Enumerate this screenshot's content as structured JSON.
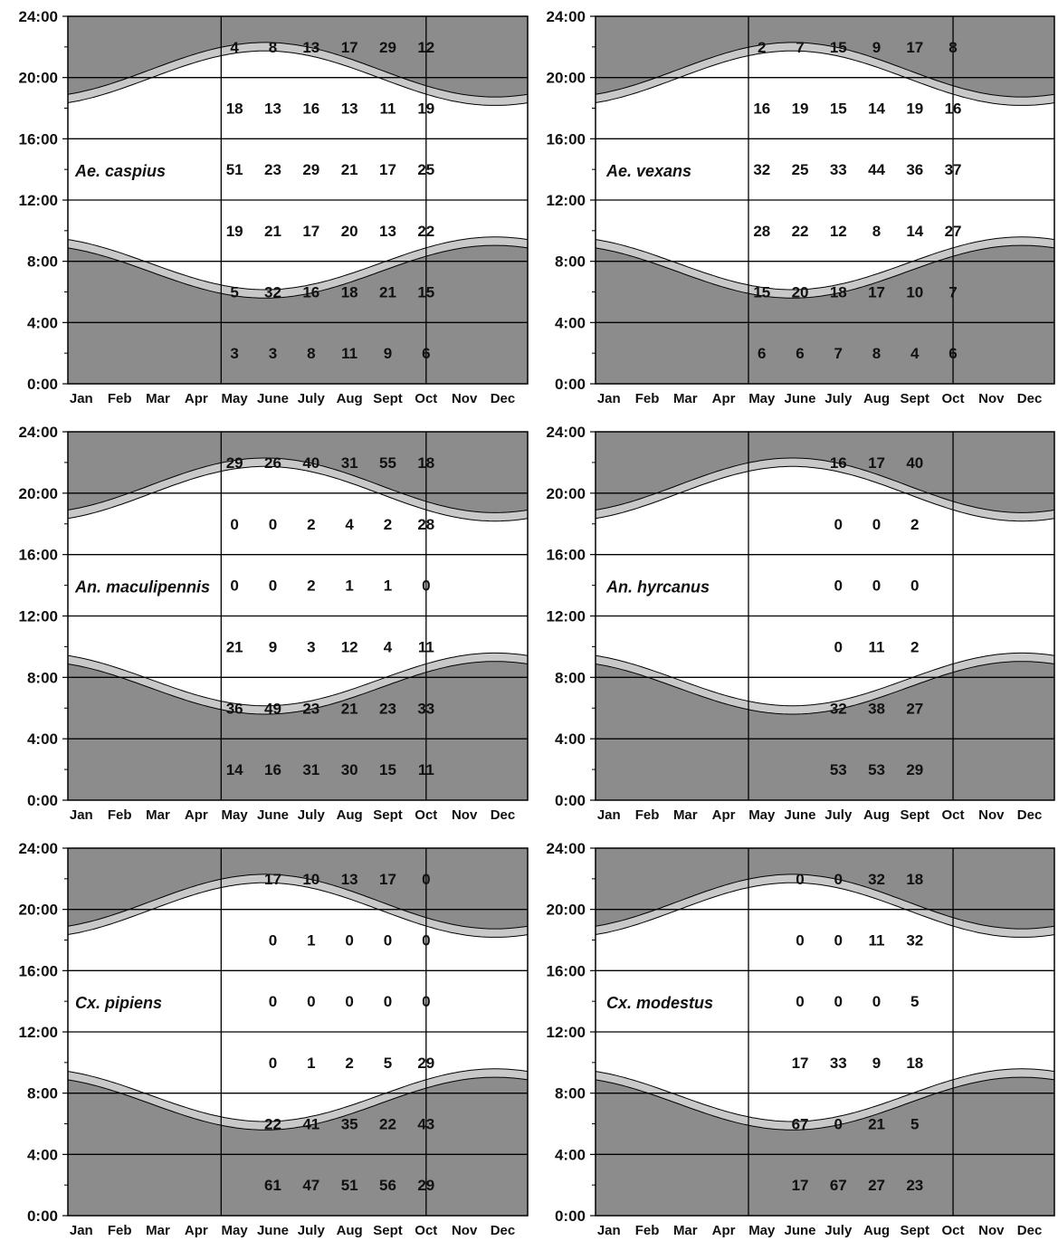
{
  "figure": {
    "months": [
      "Jan",
      "Feb",
      "Mar",
      "Apr",
      "May",
      "June",
      "July",
      "Aug",
      "Sept",
      "Oct",
      "Nov",
      "Dec"
    ],
    "y_ticks": [
      "24:00",
      "20:00",
      "16:00",
      "12:00",
      "8:00",
      "4:00",
      "0:00"
    ],
    "colors": {
      "night": "#8c8c8c",
      "twilight": "#c8c8c8",
      "day": "#ffffff",
      "lines": "#000000"
    }
  },
  "chart_data": [
    {
      "type": "table",
      "species": "Ae. caspius",
      "columns": [
        "May",
        "June",
        "July",
        "Aug",
        "Sept",
        "Oct"
      ],
      "season_start_month": "May",
      "season_end_month": "Oct",
      "time_bins": [
        "20:00-24:00",
        "16:00-20:00",
        "12:00-16:00",
        "8:00-12:00",
        "4:00-8:00",
        "0:00-4:00"
      ],
      "rows": [
        [
          "4",
          "8",
          "13",
          "17",
          "29",
          "12"
        ],
        [
          "18",
          "13",
          "16",
          "13",
          "11",
          "19"
        ],
        [
          "51",
          "23",
          "29",
          "21",
          "17",
          "25"
        ],
        [
          "19",
          "21",
          "17",
          "20",
          "13",
          "22"
        ],
        [
          "5",
          "32",
          "16",
          "18",
          "21",
          "15"
        ],
        [
          "3",
          "3",
          "8",
          "11",
          "9",
          "6"
        ]
      ]
    },
    {
      "type": "table",
      "species": "Ae. vexans",
      "columns": [
        "May",
        "June",
        "July",
        "Aug",
        "Sept",
        "Oct"
      ],
      "season_start_month": "May",
      "season_end_month": "Oct",
      "time_bins": [
        "20:00-24:00",
        "16:00-20:00",
        "12:00-16:00",
        "8:00-12:00",
        "4:00-8:00",
        "0:00-4:00"
      ],
      "rows": [
        [
          "2",
          "7",
          "15",
          "9",
          "17",
          "8"
        ],
        [
          "16",
          "19",
          "15",
          "14",
          "19",
          "16"
        ],
        [
          "32",
          "25",
          "33",
          "44",
          "36",
          "37"
        ],
        [
          "28",
          "22",
          "12",
          "8",
          "14",
          "27"
        ],
        [
          "15",
          "20",
          "18",
          "17",
          "10",
          "7"
        ],
        [
          "6",
          "6",
          "7",
          "8",
          "4",
          "6"
        ]
      ]
    },
    {
      "type": "table",
      "species": "An. maculipennis",
      "columns": [
        "May",
        "June",
        "July",
        "Aug",
        "Sept",
        "Oct"
      ],
      "season_start_month": "May",
      "season_end_month": "Oct",
      "time_bins": [
        "20:00-24:00",
        "16:00-20:00",
        "12:00-16:00",
        "8:00-12:00",
        "4:00-8:00",
        "0:00-4:00"
      ],
      "rows": [
        [
          "29",
          "26",
          "40",
          "31",
          "55",
          "18"
        ],
        [
          "0",
          "0",
          "2",
          "4",
          "2",
          "28"
        ],
        [
          "0",
          "0",
          "2",
          "1",
          "1",
          "0"
        ],
        [
          "21",
          "9",
          "3",
          "12",
          "4",
          "11"
        ],
        [
          "36",
          "49",
          "23",
          "21",
          "23",
          "33"
        ],
        [
          "14",
          "16",
          "31",
          "30",
          "15",
          "11"
        ]
      ]
    },
    {
      "type": "table",
      "species": "An. hyrcanus",
      "columns": [
        "July",
        "Aug",
        "Sept"
      ],
      "season_start_month": "May",
      "season_end_month": "Oct",
      "time_bins": [
        "20:00-24:00",
        "16:00-20:00",
        "12:00-16:00",
        "8:00-12:00",
        "4:00-8:00",
        "0:00-4:00"
      ],
      "rows": [
        [
          "16",
          "17",
          "40"
        ],
        [
          "0",
          "0",
          "2"
        ],
        [
          "0",
          "0",
          "0"
        ],
        [
          "0",
          "11",
          "2"
        ],
        [
          "32",
          "38",
          "27"
        ],
        [
          "53",
          "53",
          "29"
        ]
      ]
    },
    {
      "type": "table",
      "species": "Cx. pipiens",
      "columns": [
        "June",
        "July",
        "Aug",
        "Sept",
        "Oct"
      ],
      "season_start_month": "May",
      "season_end_month": "Oct",
      "time_bins": [
        "20:00-24:00",
        "16:00-20:00",
        "12:00-16:00",
        "8:00-12:00",
        "4:00-8:00",
        "0:00-4:00"
      ],
      "rows": [
        [
          "17",
          "10",
          "13",
          "17",
          "0"
        ],
        [
          "0",
          "1",
          "0",
          "0",
          "0"
        ],
        [
          "0",
          "0",
          "0",
          "0",
          "0"
        ],
        [
          "0",
          "1",
          "2",
          "5",
          "29"
        ],
        [
          "22",
          "41",
          "35",
          "22",
          "43"
        ],
        [
          "61",
          "47",
          "51",
          "56",
          "29"
        ]
      ]
    },
    {
      "type": "table",
      "species": "Cx. modestus",
      "columns": [
        "June",
        "July",
        "Aug",
        "Sept"
      ],
      "season_start_month": "May",
      "season_end_month": "Oct",
      "time_bins": [
        "20:00-24:00",
        "16:00-20:00",
        "12:00-16:00",
        "8:00-12:00",
        "4:00-8:00",
        "0:00-4:00"
      ],
      "rows": [
        [
          "0",
          "0",
          "32",
          "18"
        ],
        [
          "0",
          "0",
          "11",
          "32"
        ],
        [
          "0",
          "0",
          "0",
          "5"
        ],
        [
          "17",
          "33",
          "9",
          "18"
        ],
        [
          "67",
          "0",
          "21",
          "5"
        ],
        [
          "17",
          "67",
          "27",
          "23"
        ]
      ]
    }
  ]
}
